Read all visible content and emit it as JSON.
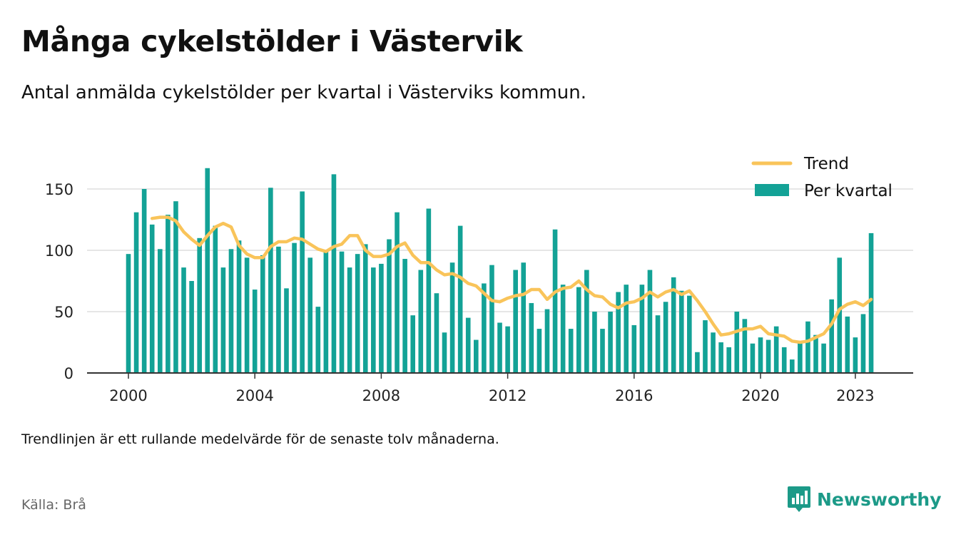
{
  "title": "Många cykelstölder i Västervik",
  "subtitle": "Antal anmälda cykelstölder per kvartal i Västerviks kommun.",
  "footnote": "Trendlinjen är ett rullande medelvärde för de senaste tolv månaderna.",
  "source": "Källa: Brå",
  "brand": {
    "name": "Newsworthy",
    "icon": "newsworthy-logo-icon",
    "color": "#1c9a88"
  },
  "chart_data": {
    "type": "bar",
    "title": "",
    "xlabel": "",
    "ylabel": "",
    "ylim": [
      0,
      175
    ],
    "yticks": [
      0,
      50,
      100,
      150
    ],
    "xticks": [
      {
        "label": "2000",
        "value": 2000
      },
      {
        "label": "2004",
        "value": 2004
      },
      {
        "label": "2008",
        "value": 2008
      },
      {
        "label": "2012",
        "value": 2012
      },
      {
        "label": "2016",
        "value": 2016
      },
      {
        "label": "2020",
        "value": 2020
      },
      {
        "label": "2023",
        "value": 2023
      }
    ],
    "grid": true,
    "legend_position": "top-right",
    "series": [
      {
        "name": "Per kvartal",
        "type": "bar",
        "color": "#13a296",
        "start_year": 2000,
        "values": [
          97,
          131,
          150,
          121,
          101,
          129,
          140,
          86,
          75,
          110,
          167,
          120,
          86,
          101,
          108,
          94,
          68,
          96,
          151,
          103,
          69,
          106,
          148,
          94,
          54,
          100,
          162,
          99,
          86,
          97,
          105,
          86,
          89,
          109,
          131,
          93,
          47,
          84,
          134,
          65,
          33,
          90,
          120,
          45,
          27,
          73,
          88,
          41,
          38,
          84,
          90,
          57,
          36,
          52,
          117,
          72,
          36,
          70,
          84,
          50,
          36,
          50,
          66,
          72,
          39,
          72,
          84,
          47,
          58,
          78,
          67,
          63,
          17,
          43,
          33,
          25,
          21,
          50,
          44,
          24,
          29,
          27,
          38,
          21,
          11,
          25,
          42,
          31,
          24,
          60,
          94,
          46,
          29,
          48,
          114
        ]
      },
      {
        "name": "Trend",
        "type": "line",
        "color": "#f9c45a",
        "start_year": 2000.75,
        "values": [
          126,
          127,
          127,
          124,
          115,
          109,
          104,
          112,
          119,
          122,
          119,
          104,
          97,
          94,
          94,
          103,
          107,
          107,
          110,
          109,
          105,
          101,
          99,
          103,
          105,
          112,
          112,
          100,
          95,
          95,
          97,
          103,
          106,
          96,
          90,
          90,
          84,
          80,
          81,
          78,
          73,
          71,
          65,
          59,
          58,
          61,
          63,
          64,
          68,
          68,
          60,
          66,
          69,
          70,
          75,
          68,
          63,
          62,
          56,
          53,
          57,
          58,
          61,
          66,
          62,
          66,
          68,
          64,
          67,
          59,
          50,
          40,
          31,
          32,
          34,
          36,
          36,
          38,
          32,
          31,
          30,
          26,
          25,
          26,
          29,
          32,
          40,
          52,
          56,
          58,
          55,
          60
        ]
      }
    ]
  }
}
